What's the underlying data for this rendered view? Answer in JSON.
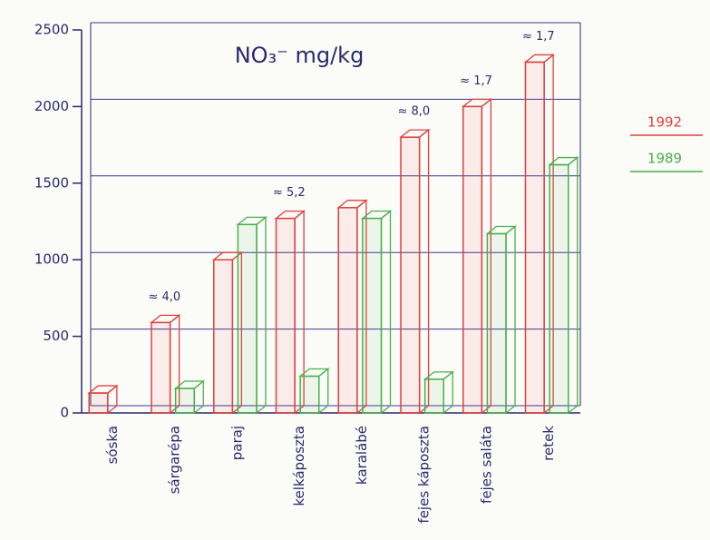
{
  "chart_data": {
    "type": "bar3d",
    "title": "NO₃⁻ mg/kg",
    "categories": [
      "sóska",
      "sárgarépa",
      "paraj",
      "kelkáposzta",
      "karalábé",
      "fejes káposzta",
      "fejes saláta",
      "retek"
    ],
    "series": [
      {
        "name": "1992",
        "color": "#e0403c",
        "values": [
          130,
          590,
          1000,
          1270,
          1340,
          1800,
          2000,
          2290
        ]
      },
      {
        "name": "1989",
        "color": "#48b048",
        "values": [
          null,
          160,
          1230,
          240,
          1270,
          220,
          1170,
          1620
        ]
      }
    ],
    "annotations": [
      null,
      "≈ 4,0",
      null,
      "≈ 5,2",
      null,
      "≈ 8,0",
      "≈ 1,7",
      "≈ 1,7"
    ],
    "ylim": [
      0,
      2500
    ],
    "yticks": [
      0,
      500,
      1000,
      1500,
      2000,
      2500
    ],
    "grid": true,
    "legend": "right"
  }
}
